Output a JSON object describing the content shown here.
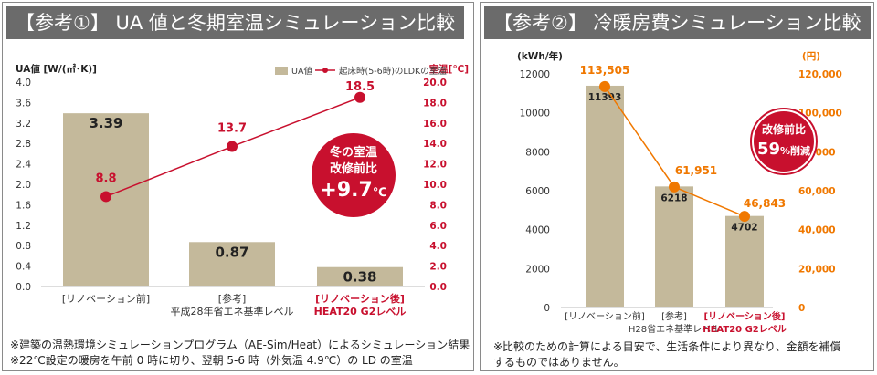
{
  "panels": {
    "left_title": "【参考①】 UA 値と冬期室温シミュレーション比較",
    "right_title": "【参考②】 冷暖房費シミュレーション比較"
  },
  "chart_data": [
    {
      "type": "bar",
      "title": "UA 値と冬期室温シミュレーション比較",
      "ylabel": "UA値 [W/(㎡･K)]",
      "y2label": "室温[℃]",
      "ylim": [
        0,
        4.0
      ],
      "y2lim": [
        0,
        20.0
      ],
      "yticks": [
        "4.0",
        "3.6",
        "3.2",
        "2.8",
        "2.4",
        "2.0",
        "1.6",
        "1.2",
        "0.8",
        "0.4",
        "0.0"
      ],
      "y2ticks": [
        "20.0",
        "18.0",
        "16.0",
        "14.0",
        "12.0",
        "10.0",
        "8.0",
        "6.0",
        "4.0",
        "2.0",
        "0.0"
      ],
      "categories": [
        {
          "line1": "[リノベーション前]",
          "line2": "",
          "highlight": false
        },
        {
          "line1": "[参考]",
          "line2": "平成28年省エネ基準レベル",
          "highlight": false
        },
        {
          "line1": "[リノベーション後]",
          "line2": "HEAT20 G2レベル",
          "highlight": true
        }
      ],
      "series": [
        {
          "name": "UA値",
          "type": "bar",
          "values": [
            3.39,
            0.87,
            0.38
          ],
          "labels": [
            "3.39",
            "0.87",
            "0.38"
          ],
          "color": "#c4b99b"
        },
        {
          "name": "起床時(5-6時)のLDKの室温",
          "type": "line",
          "axis": "right",
          "values": [
            8.8,
            13.7,
            18.5
          ],
          "labels": [
            "8.8",
            "13.7",
            "18.5"
          ],
          "color": "#c8102e"
        }
      ],
      "callout": {
        "line1": "冬の室温",
        "line2": "改修前比",
        "value": "+9.7",
        "unit": "℃"
      },
      "notes": [
        "※建築の温熱環境シミュレーションプログラム（AE-Sim/Heat）によるシミュレーション結果",
        "※22℃設定の暖房を午前 0 時に切り、翌朝 5-6 時（外気温 4.9℃）の LD の室温"
      ],
      "colors": {
        "bar": "#c4b99b",
        "line": "#c8102e",
        "highlight_text": "#c8102e"
      }
    },
    {
      "type": "bar",
      "title": "冷暖房費シミュレーション比較",
      "ylabel": "(kWh/年)",
      "y2label": "(円)",
      "ylim": [
        0,
        12000
      ],
      "y2lim": [
        0,
        120000
      ],
      "yticks": [
        "12000",
        "10000",
        "8000",
        "6000",
        "4000",
        "2000",
        "0"
      ],
      "y2ticks": [
        "120,000",
        "100,000",
        "80,000",
        "60,000",
        "40,000",
        "20,000",
        "0"
      ],
      "categories": [
        {
          "line1": "[リノベーション前]",
          "line2": "",
          "highlight": false
        },
        {
          "line1": "[参考]",
          "line2": "H28省エネ基準レベル",
          "highlight": false
        },
        {
          "line1": "[リノベーション後]",
          "line2": "HEAT20 G2レベル",
          "highlight": true
        }
      ],
      "series": [
        {
          "name": "kWh/年",
          "type": "bar",
          "values": [
            11393,
            6218,
            4702
          ],
          "labels": [
            "11393",
            "6218",
            "4702"
          ],
          "color": "#c4b99b"
        },
        {
          "name": "円",
          "type": "line",
          "axis": "right",
          "values": [
            113505,
            61951,
            46843
          ],
          "labels": [
            "113,505",
            "61,951",
            "46,843"
          ],
          "color": "#f07800"
        }
      ],
      "callout": {
        "line1": "改修前比",
        "value": "59",
        "unit": "%削減"
      },
      "notes": [
        "※比較のための計算による目安で、生活条件により異なり、金額を補償",
        "するものではありません。"
      ],
      "colors": {
        "bar": "#c4b99b",
        "line": "#f07800",
        "highlight_text": "#c8102e"
      }
    }
  ]
}
